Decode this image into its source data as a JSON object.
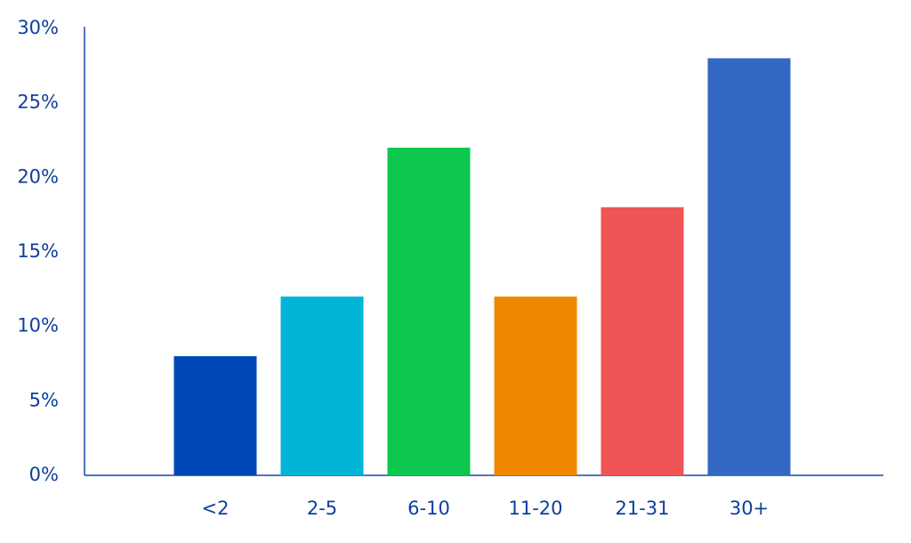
{
  "chart_data": {
    "type": "bar",
    "categories": [
      "<2",
      "2-5",
      "6-10",
      "11-20",
      "21-31",
      "30+"
    ],
    "values": [
      8,
      12,
      22,
      12,
      18,
      28
    ],
    "colors": [
      "#0047b6",
      "#00b5d6",
      "#0cc84f",
      "#ee8800",
      "#ef5456",
      "#3369c4"
    ],
    "ylim": [
      0,
      30
    ],
    "yticks": [
      {
        "value": 0,
        "label": "0%"
      },
      {
        "value": 5,
        "label": "5%"
      },
      {
        "value": 10,
        "label": "10%"
      },
      {
        "value": 15,
        "label": "15%"
      },
      {
        "value": 20,
        "label": "20%"
      },
      {
        "value": 25,
        "label": "25%"
      },
      {
        "value": 30,
        "label": "30%"
      }
    ],
    "grid": false
  }
}
